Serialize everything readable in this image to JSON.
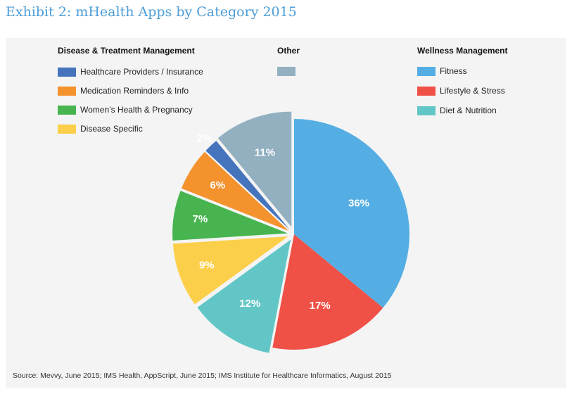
{
  "title": "Exhibit 2: mHealth Apps by Category 2015",
  "groups": {
    "disease": "Disease & Treatment Management",
    "other": "Other",
    "wellness": "Wellness Management"
  },
  "chart_data": {
    "type": "pie",
    "slices": [
      {
        "label": "Fitness",
        "value": 36,
        "display": "36%",
        "color": "#55aee3",
        "group": "Wellness Management"
      },
      {
        "label": "Lifestyle & Stress",
        "value": 17,
        "display": "17%",
        "color": "#ef5147",
        "group": "Wellness Management"
      },
      {
        "label": "Diet & Nutrition",
        "value": 12,
        "display": "12%",
        "color": "#63c6c6",
        "group": "Wellness Management"
      },
      {
        "label": "Disease Specific",
        "value": 9,
        "display": "9%",
        "color": "#fccf4b",
        "group": "Disease & Treatment Management"
      },
      {
        "label": "Women’s Health & Pregnancy",
        "value": 7,
        "display": "7%",
        "color": "#47b44f",
        "group": "Disease & Treatment Management"
      },
      {
        "label": "Medication Reminders & Info",
        "value": 6,
        "display": "6%",
        "color": "#f4922e",
        "group": "Disease & Treatment Management"
      },
      {
        "label": "Healthcare Providers / Insurance",
        "value": 2,
        "display": "2%",
        "color": "#4574bc",
        "group": "Disease & Treatment Management"
      },
      {
        "label": "",
        "value": 11,
        "display": "11%",
        "color": "#93b0c1",
        "group": "Other"
      }
    ],
    "legend": {
      "disease": [
        "Healthcare Providers / Insurance",
        "Medication Reminders & Info",
        "Women’s Health & Pregnancy",
        "Disease Specific"
      ],
      "other": [
        ""
      ],
      "wellness": [
        "Fitness",
        "Lifestyle & Stress",
        "Diet & Nutrition"
      ]
    }
  },
  "source": "Source: Mevvy, June 2015; IMS Health, AppScript, June 2015; IMS Institute for Healthcare Informatics, August 2015"
}
